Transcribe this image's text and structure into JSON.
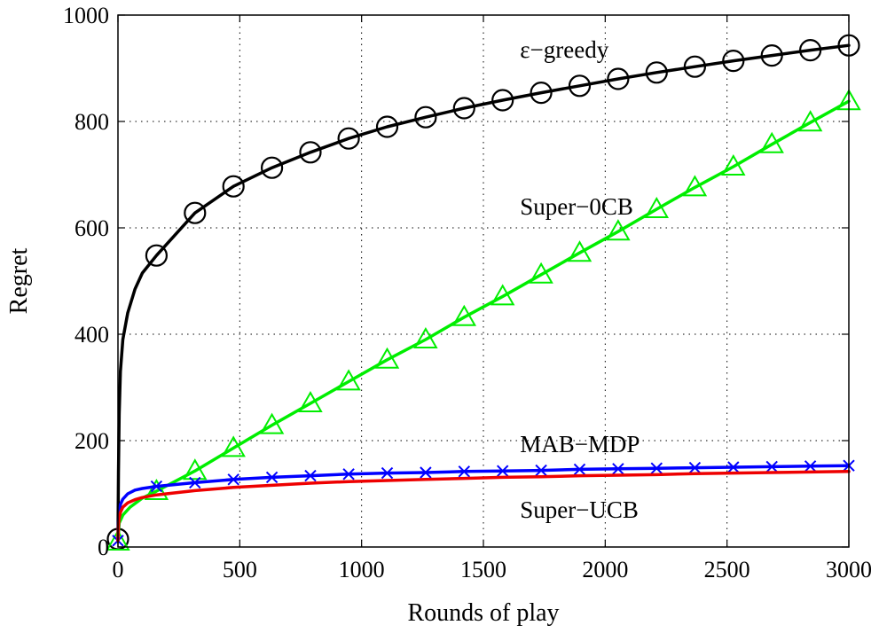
{
  "chart_data": {
    "type": "line",
    "xlabel": "Rounds of play",
    "ylabel": "Regret",
    "xlim": [
      0,
      3000
    ],
    "ylim": [
      0,
      1000
    ],
    "xticks": [
      0,
      500,
      1000,
      1500,
      2000,
      2500,
      3000
    ],
    "yticks": [
      0,
      200,
      400,
      600,
      800,
      1000
    ],
    "grid": true,
    "series": [
      {
        "name": "ε−greedy",
        "color": "#000000",
        "marker": "circle",
        "marker_x": [
          0,
          158,
          316,
          474,
          632,
          790,
          947,
          1105,
          1263,
          1421,
          1579,
          1737,
          1895,
          2053,
          2211,
          2368,
          2526,
          2684,
          2842,
          3000
        ],
        "x": [
          0,
          2,
          5,
          10,
          20,
          40,
          70,
          100,
          158,
          316,
          474,
          632,
          790,
          947,
          1105,
          1263,
          1421,
          1579,
          1737,
          1895,
          2053,
          2211,
          2368,
          2526,
          2684,
          2842,
          3000
        ],
        "y": [
          15,
          140,
          250,
          330,
          390,
          440,
          485,
          515,
          548,
          628,
          678,
          713,
          742,
          768,
          790,
          808,
          825,
          840,
          854,
          867,
          880,
          892,
          903,
          914,
          924,
          934,
          943
        ]
      },
      {
        "name": "Super−0CB",
        "color": "#00ee00",
        "marker": "triangle",
        "marker_x": [
          0,
          158,
          316,
          474,
          632,
          790,
          947,
          1105,
          1263,
          1421,
          1579,
          1737,
          1895,
          2053,
          2211,
          2368,
          2526,
          2684,
          2842,
          3000
        ],
        "x": [
          0,
          5,
          20,
          50,
          100,
          158,
          316,
          474,
          632,
          790,
          947,
          1105,
          1263,
          1421,
          1579,
          1737,
          1895,
          2053,
          2211,
          2368,
          2526,
          2684,
          2842,
          3000
        ],
        "y": [
          10,
          45,
          60,
          75,
          92,
          105,
          143,
          186,
          229,
          270,
          311,
          352,
          390,
          432,
          471,
          512,
          553,
          593,
          635,
          676,
          715,
          757,
          798,
          838
        ]
      },
      {
        "name": "MAB−MDP",
        "color": "#0000ff",
        "marker": "x",
        "marker_x": [
          0,
          158,
          316,
          474,
          632,
          790,
          947,
          1105,
          1263,
          1421,
          1579,
          1737,
          1895,
          2053,
          2211,
          2368,
          2526,
          2684,
          2842,
          3000
        ],
        "x": [
          0,
          2,
          5,
          10,
          20,
          40,
          70,
          100,
          158,
          316,
          474,
          632,
          790,
          947,
          1105,
          1263,
          1421,
          1579,
          1737,
          1895,
          2053,
          2211,
          2368,
          2526,
          2684,
          2842,
          3000
        ],
        "y": [
          12,
          45,
          65,
          80,
          90,
          100,
          107,
          110,
          114,
          121,
          127,
          131,
          134,
          137,
          139,
          140,
          142,
          143,
          144,
          146,
          147,
          148,
          149,
          150,
          151,
          152,
          153
        ]
      },
      {
        "name": "Super−UCB",
        "color": "#ee0000",
        "marker": "none",
        "x": [
          0,
          2,
          5,
          10,
          20,
          40,
          70,
          100,
          158,
          316,
          474,
          632,
          790,
          947,
          1105,
          1263,
          1421,
          1579,
          1737,
          1895,
          2053,
          2211,
          2368,
          2526,
          2684,
          2842,
          3000
        ],
        "y": [
          12,
          40,
          55,
          65,
          75,
          83,
          89,
          93,
          98,
          106,
          112,
          116,
          120,
          123,
          125,
          127,
          129,
          131,
          132,
          134,
          135,
          136,
          138,
          139,
          140,
          141,
          142
        ]
      }
    ],
    "annotations": [
      {
        "text": "ε−greedy",
        "x": 1650,
        "y": 935
      },
      {
        "text": "Super−0CB",
        "x": 1650,
        "y": 640
      },
      {
        "text": "MAB−MDP",
        "x": 1650,
        "y": 193
      },
      {
        "text": "Super−UCB",
        "x": 1650,
        "y": 70
      }
    ]
  }
}
